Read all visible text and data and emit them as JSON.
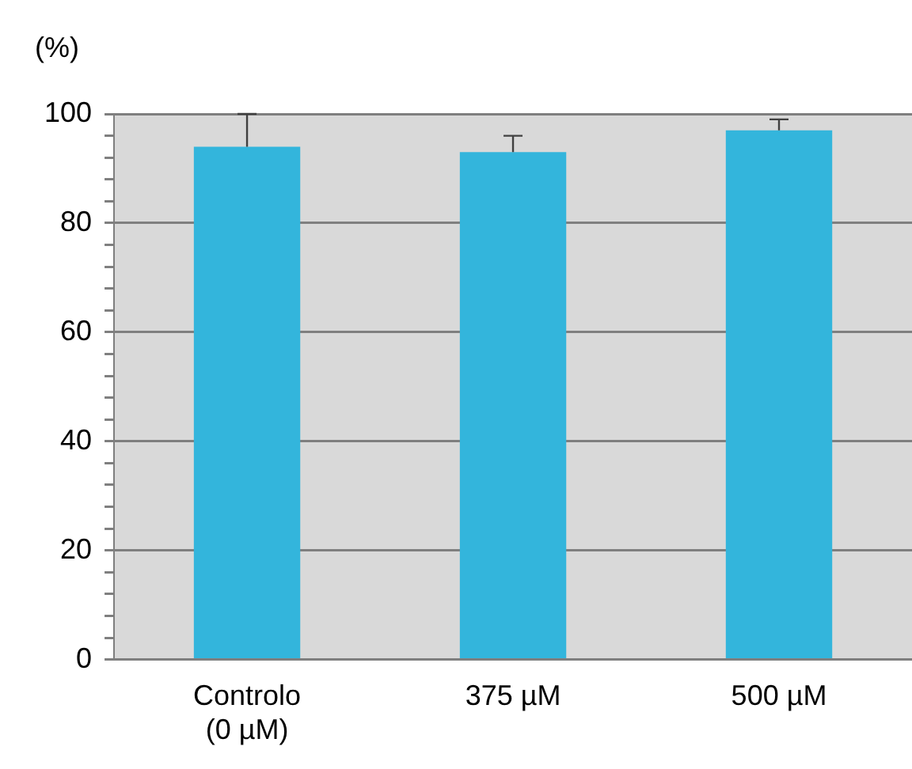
{
  "chart_data": {
    "type": "bar",
    "ylabel": "(%)",
    "categories": [
      "Controlo\n(0 µM)",
      "375 µM",
      "500 µM"
    ],
    "values": [
      94,
      93,
      97
    ],
    "errors": [
      6,
      3,
      2
    ],
    "color": "#33b5dc",
    "ylim": [
      0,
      100
    ],
    "yticks": [
      0,
      {
        "value": 4,
        "label": null
      },
      {
        "value": 8,
        "label": null
      },
      {
        "value": 12,
        "label": null
      },
      {
        "value": 16,
        "label": null
      },
      20,
      {
        "value": 24,
        "label": null
      },
      {
        "value": 28,
        "label": null
      },
      {
        "value": 32,
        "label": null
      },
      {
        "value": 36,
        "label": null
      },
      40,
      {
        "value": 44,
        "label": null
      },
      {
        "value": 48,
        "label": null
      },
      {
        "value": 52,
        "label": null
      },
      {
        "value": 56,
        "label": null
      },
      60,
      {
        "value": 64,
        "label": null
      },
      {
        "value": 68,
        "label": null
      },
      {
        "value": 72,
        "label": null
      },
      {
        "value": 76,
        "label": null
      },
      80,
      {
        "value": 84,
        "label": null
      },
      {
        "value": 88,
        "label": null
      },
      {
        "value": 92,
        "label": null
      },
      {
        "value": 96,
        "label": null
      },
      100
    ],
    "grid": "y",
    "legend": false
  }
}
